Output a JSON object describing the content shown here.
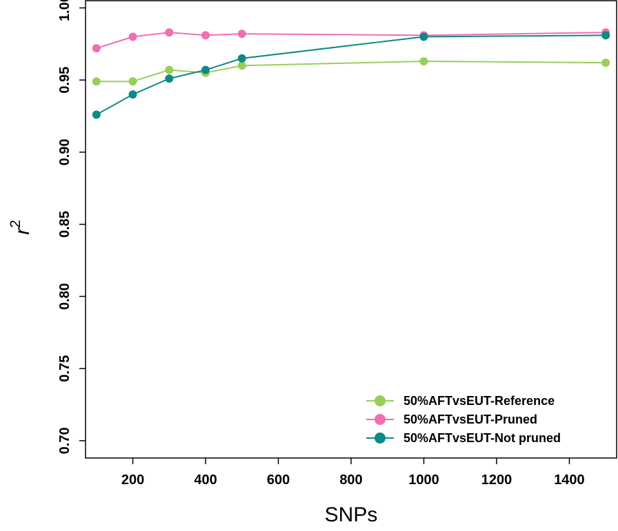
{
  "chart_data": {
    "type": "line",
    "title": "",
    "xlabel": "SNPs",
    "ylabel": "r",
    "ylabel_superscript": "2",
    "xlim": [
      70,
      1530
    ],
    "ylim": [
      0.688,
      1.005
    ],
    "xticks": [
      200,
      400,
      600,
      800,
      1000,
      1200,
      1400
    ],
    "yticks": [
      0.7,
      0.75,
      0.8,
      0.85,
      0.9,
      0.95,
      1.0
    ],
    "ytick_labels": [
      "0.70",
      "0.75",
      "0.80",
      "0.85",
      "0.90",
      "0.95",
      "1.00"
    ],
    "grid": false,
    "legend_position": "bottom-right",
    "x": [
      100,
      200,
      300,
      400,
      500,
      1000,
      1500
    ],
    "series": [
      {
        "name": "50%AFTvsEUT-Reference",
        "color": "#9ACD5A",
        "values": [
          0.949,
          0.949,
          0.957,
          0.955,
          0.96,
          0.963,
          0.962
        ]
      },
      {
        "name": "50%AFTvsEUT-Pruned",
        "color": "#F06EB4",
        "values": [
          0.972,
          0.98,
          0.983,
          0.981,
          0.982,
          0.981,
          0.983
        ]
      },
      {
        "name": "50%AFTvsEUT-Not pruned",
        "color": "#0E8A86",
        "values": [
          0.926,
          0.94,
          0.951,
          0.957,
          0.965,
          0.98,
          0.981
        ]
      }
    ]
  }
}
